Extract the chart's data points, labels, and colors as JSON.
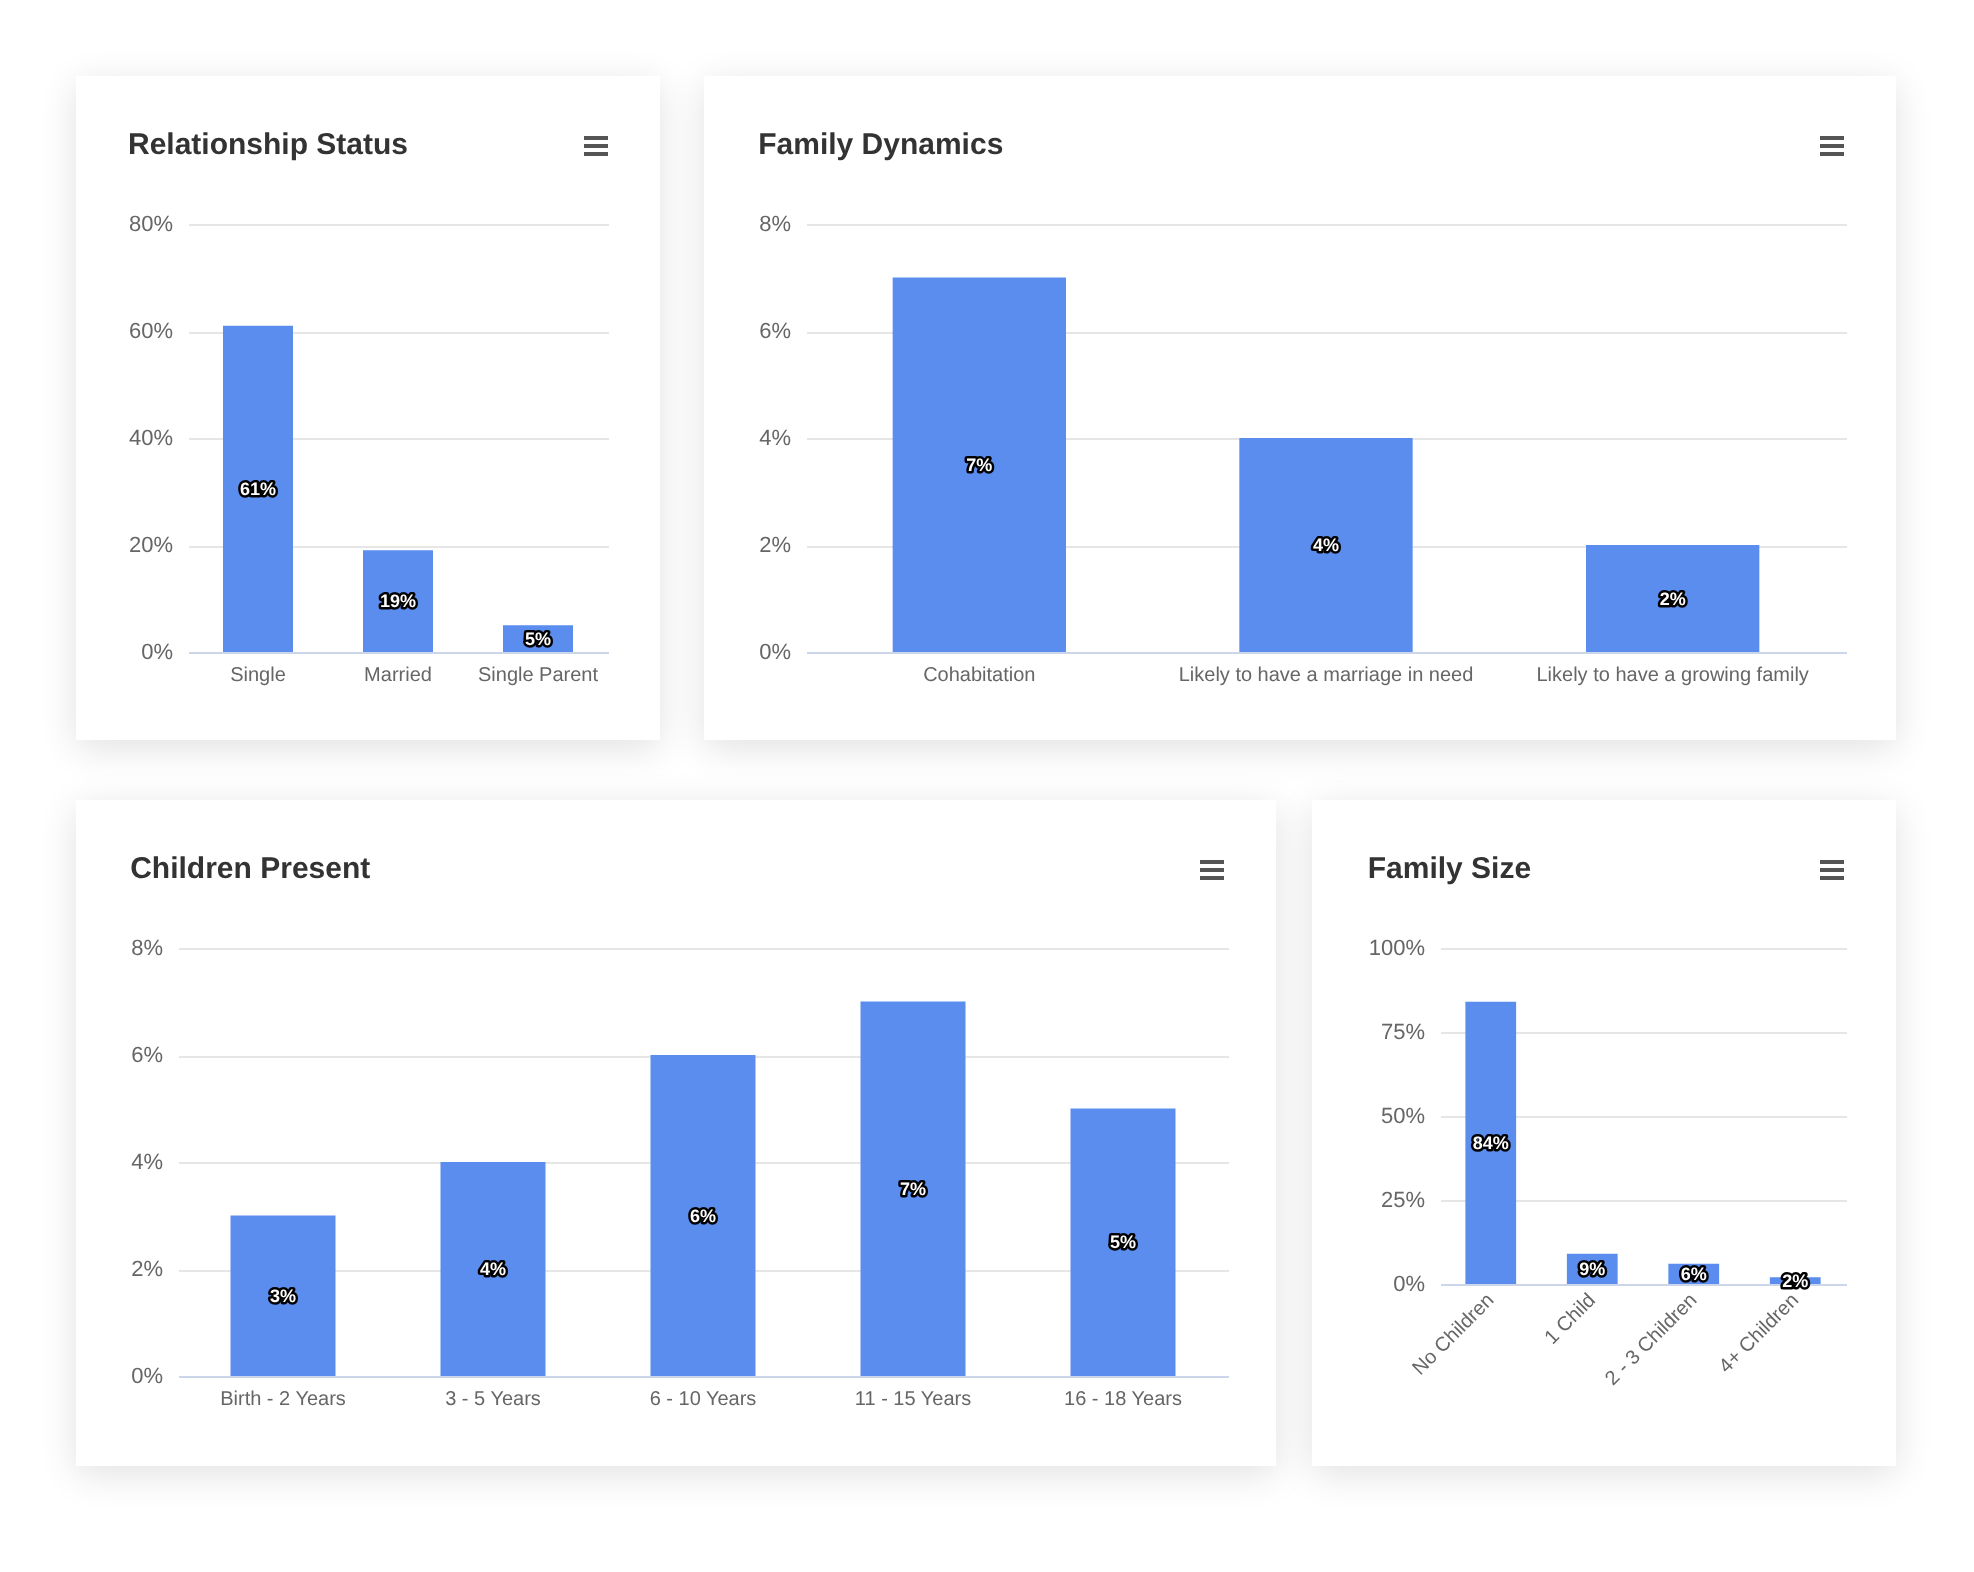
{
  "chart_data": [
    {
      "type": "bar",
      "title": "Relationship Status",
      "categories": [
        "Single",
        "Married",
        "Single Parent"
      ],
      "values": [
        61,
        19,
        5
      ],
      "color": "#5b8def",
      "value_labels": [
        "61%",
        "19%",
        "5%"
      ],
      "ylim": [
        0,
        80
      ],
      "yticks": [
        {
          "value": 0,
          "label": "0%"
        },
        {
          "value": 20,
          "label": "20%"
        },
        {
          "value": 40,
          "label": "40%"
        },
        {
          "value": 60,
          "label": "60%"
        },
        {
          "value": 80,
          "label": "80%"
        }
      ],
      "grid": "y"
    },
    {
      "type": "bar",
      "title": "Family Dynamics",
      "categories": [
        "Cohabitation",
        "Likely to have a marriage in need",
        "Likely to have a growing family"
      ],
      "values": [
        7,
        4,
        2
      ],
      "color": "#5b8def",
      "value_labels": [
        "7%",
        "4%",
        "2%"
      ],
      "ylim": [
        0,
        8
      ],
      "yticks": [
        {
          "value": 0,
          "label": "0%"
        },
        {
          "value": 2,
          "label": "2%"
        },
        {
          "value": 4,
          "label": "4%"
        },
        {
          "value": 6,
          "label": "6%"
        },
        {
          "value": 8,
          "label": "8%"
        }
      ],
      "grid": "y"
    },
    {
      "type": "bar",
      "title": "Children Present",
      "categories": [
        "Birth - 2 Years",
        "3 - 5 Years",
        "6 - 10 Years",
        "11 - 15 Years",
        "16 - 18 Years"
      ],
      "values": [
        3,
        4,
        6,
        7,
        5
      ],
      "color": "#5b8def",
      "value_labels": [
        "3%",
        "4%",
        "6%",
        "7%",
        "5%"
      ],
      "ylim": [
        0,
        8
      ],
      "yticks": [
        {
          "value": 0,
          "label": "0%"
        },
        {
          "value": 2,
          "label": "2%"
        },
        {
          "value": 4,
          "label": "4%"
        },
        {
          "value": 6,
          "label": "6%"
        },
        {
          "value": 8,
          "label": "8%"
        }
      ],
      "grid": "y"
    },
    {
      "type": "bar",
      "title": "Family Size",
      "categories": [
        "No Children",
        "1 Child",
        "2 - 3 Children",
        "4+ Children"
      ],
      "values": [
        84,
        9,
        6,
        2
      ],
      "color": "#5b8def",
      "value_labels": [
        "84%",
        "9%",
        "6%",
        "2%"
      ],
      "ylim": [
        0,
        100
      ],
      "yticks": [
        {
          "value": 0,
          "label": "0%"
        },
        {
          "value": 25,
          "label": "25%"
        },
        {
          "value": 50,
          "label": "50%"
        },
        {
          "value": 75,
          "label": "75%"
        },
        {
          "value": 100,
          "label": "100%"
        }
      ],
      "grid": "y"
    }
  ]
}
